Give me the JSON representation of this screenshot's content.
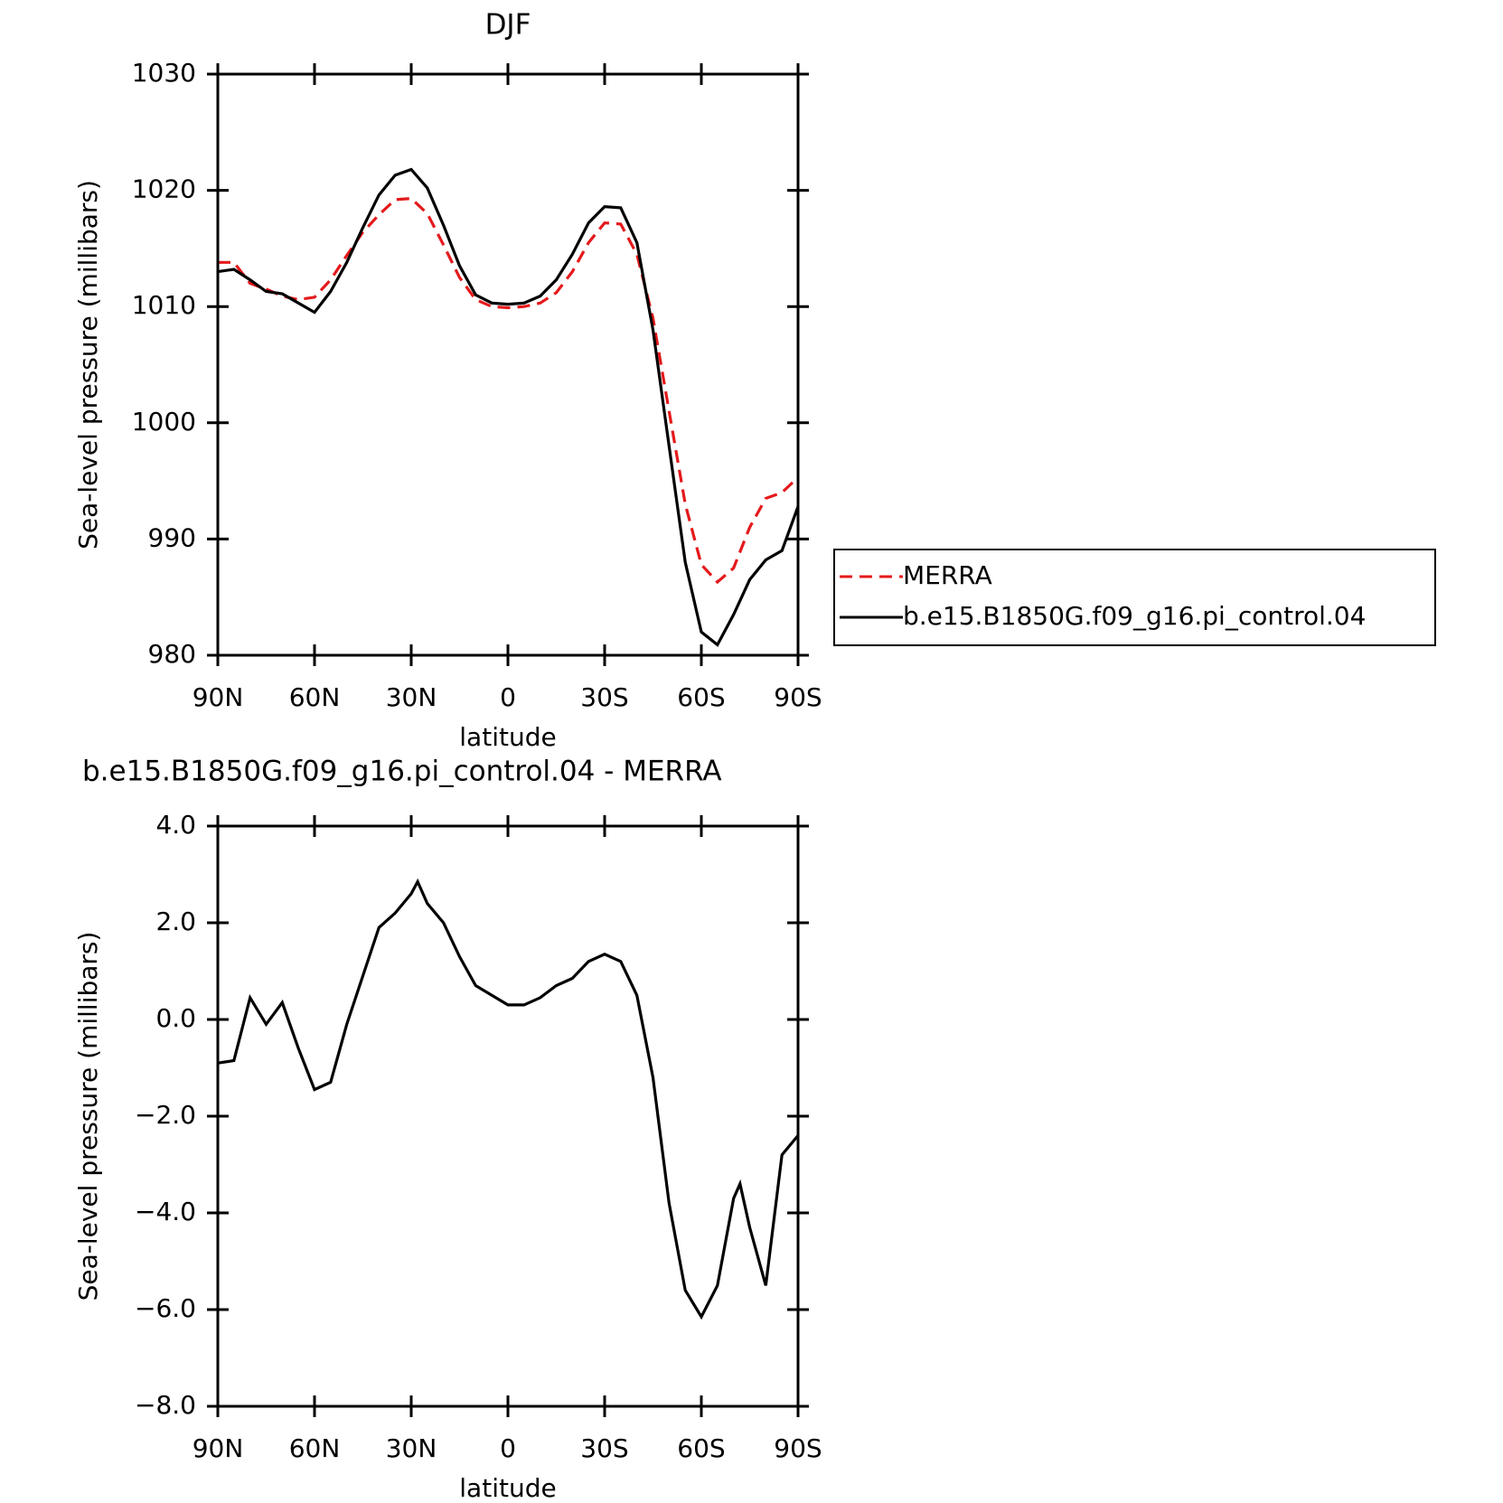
{
  "chart_data": [
    {
      "type": "line",
      "title": "DJF",
      "xlabel": "latitude",
      "ylabel": "Sea-level pressure (millibars)",
      "x": [
        90,
        85,
        80,
        75,
        70,
        65,
        60,
        55,
        50,
        45,
        40,
        35,
        30,
        25,
        20,
        15,
        10,
        5,
        0,
        -5,
        -10,
        -15,
        -20,
        -25,
        -30,
        -35,
        -40,
        -45,
        -50,
        -55,
        -60,
        -65,
        -70,
        -75,
        -80,
        -85,
        -90
      ],
      "series": [
        {
          "name": "MERRA",
          "color": "#e41a1c",
          "dash": true,
          "values": [
            1013.8,
            1013.8,
            1012.0,
            1011.5,
            1010.9,
            1010.6,
            1010.8,
            1012.3,
            1014.4,
            1016.4,
            1017.9,
            1019.2,
            1019.3,
            1018.0,
            1015.3,
            1012.5,
            1010.6,
            1010.0,
            1009.9,
            1010.0,
            1010.3,
            1011.2,
            1013.0,
            1015.5,
            1017.2,
            1017.1,
            1014.5,
            1009,
            1001,
            993,
            987.8,
            986.3,
            987.5,
            991,
            993.5,
            994.0,
            995.3
          ]
        },
        {
          "name": "b.e15.B1850G.f09_g16.pi_control.04",
          "color": "#000000",
          "dash": false,
          "values": [
            1013.0,
            1013.2,
            1012.3,
            1011.3,
            1011.1,
            1010.3,
            1009.5,
            1011.3,
            1013.8,
            1016.8,
            1019.6,
            1021.3,
            1021.8,
            1020.2,
            1017.0,
            1013.5,
            1011.0,
            1010.3,
            1010.2,
            1010.3,
            1010.9,
            1012.3,
            1014.5,
            1017.2,
            1018.6,
            1018.5,
            1015.5,
            1008,
            998,
            988,
            982,
            980.9,
            983.5,
            986.5,
            988.2,
            989.0,
            992.8
          ]
        }
      ],
      "xlim": [
        90,
        -90
      ],
      "xticks": [
        {
          "value": 90,
          "label": "90N"
        },
        {
          "value": 60,
          "label": "60N"
        },
        {
          "value": 30,
          "label": "30N"
        },
        0,
        {
          "value": -30,
          "label": "30S"
        },
        {
          "value": -60,
          "label": "60S"
        },
        {
          "value": -90,
          "label": "90S"
        }
      ],
      "ylim": [
        980,
        1030
      ],
      "yticks": [
        980,
        990,
        1000,
        1010,
        1020,
        1030
      ],
      "legend": "right"
    },
    {
      "type": "line",
      "title": "b.e15.B1850G.f09_g16.pi_control.04 - MERRA",
      "xlabel": "latitude",
      "ylabel": "Sea-level pressure (millibars)",
      "x": [
        90,
        85,
        80,
        75,
        70,
        65,
        60,
        55,
        50,
        45,
        40,
        35,
        30,
        28,
        25,
        20,
        15,
        10,
        5,
        0,
        -5,
        -10,
        -15,
        -20,
        -25,
        -30,
        -35,
        -40,
        -45,
        -50,
        -55,
        -60,
        -65,
        -70,
        -72,
        -75,
        -80,
        -85,
        -90
      ],
      "series": [
        {
          "color": "#000000",
          "dash": false,
          "values": [
            -0.9,
            -0.85,
            0.45,
            -0.1,
            0.35,
            -0.6,
            -1.45,
            -1.3,
            -0.1,
            0.9,
            1.9,
            2.2,
            2.6,
            2.85,
            2.4,
            2.0,
            1.3,
            0.7,
            0.5,
            0.3,
            0.3,
            0.45,
            0.7,
            0.85,
            1.2,
            1.35,
            1.2,
            0.5,
            -1.2,
            -3.8,
            -5.6,
            -6.15,
            -5.5,
            -3.7,
            -3.4,
            -4.3,
            -5.5,
            -2.8,
            -2.4
          ]
        }
      ],
      "xlim": [
        90,
        -90
      ],
      "xticks": [
        {
          "value": 90,
          "label": "90N"
        },
        {
          "value": 60,
          "label": "60N"
        },
        {
          "value": 30,
          "label": "30N"
        },
        0,
        {
          "value": -30,
          "label": "30S"
        },
        {
          "value": -60,
          "label": "60S"
        },
        {
          "value": -90,
          "label": "90S"
        }
      ],
      "ylim": [
        -8,
        4
      ],
      "yticks": [
        {
          "value": -8,
          "label": "−8.0"
        },
        {
          "value": -6,
          "label": "−6.0"
        },
        {
          "value": -4,
          "label": "−4.0"
        },
        {
          "value": -2,
          "label": "−2.0"
        },
        {
          "value": 0,
          "label": "0.0"
        },
        {
          "value": 2,
          "label": "2.0"
        },
        {
          "value": 4,
          "label": "4.0"
        }
      ]
    }
  ]
}
